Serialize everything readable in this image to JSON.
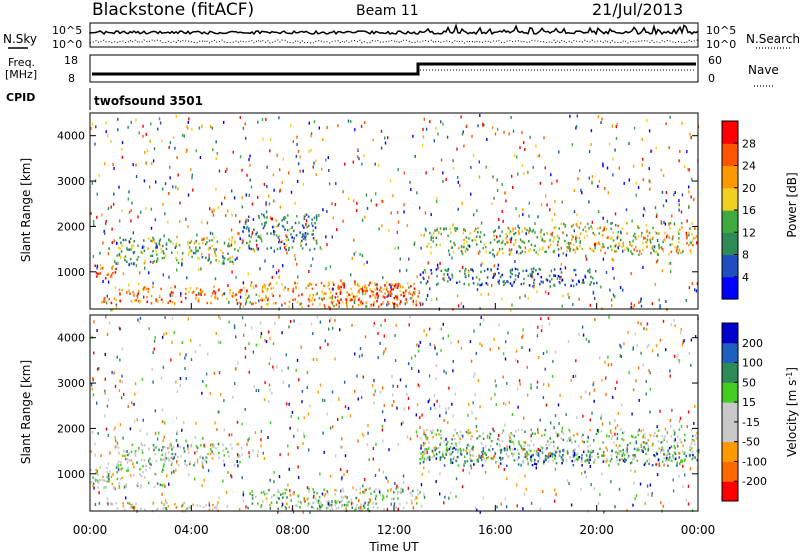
{
  "header": {
    "station": "Blackstone (fitACF)",
    "beam": "Beam 11",
    "date": "21/Jul/2013"
  },
  "noise_panel": {
    "left_label": "N.Sky",
    "right_label": "N.Search",
    "left_ticks": [
      "10^5",
      "10^0"
    ],
    "right_ticks": [
      "10^5",
      "10^0"
    ]
  },
  "freq_panel": {
    "left_label_1": "Freq.",
    "left_label_2": "[MHz]",
    "left_ticks": [
      "18",
      "8"
    ],
    "right_label": "Nave",
    "right_ticks": [
      "60",
      "0"
    ]
  },
  "cpid_panel": {
    "label": "CPID",
    "program": "twofsound 3501"
  },
  "colors": {
    "power": [
      "#0000ff",
      "#1f4fbf",
      "#2e8b57",
      "#3faa3f",
      "#f0d020",
      "#ff9900",
      "#ff5500",
      "#ff0000"
    ],
    "velocity": [
      "#ff0000",
      "#ff6a00",
      "#ff9900",
      "#c8c8c8",
      "#c8c8c8",
      "#44cc22",
      "#2e8b57",
      "#1f5fbf",
      "#0000cc"
    ]
  },
  "chart_data": [
    {
      "type": "heatmap",
      "name": "power",
      "xlabel": "",
      "ylabel": "Slant Range [km]",
      "ylim": [
        180,
        4500
      ],
      "xlim": [
        0,
        24
      ],
      "yticks": [
        "4000",
        "3000",
        "2000",
        "1000"
      ],
      "ytick_values": [
        4000,
        3000,
        2000,
        1000
      ],
      "colorbar": {
        "label": "Power [dB]",
        "ticks": [
          "28",
          "24",
          "20",
          "16",
          "12",
          "8",
          "4"
        ],
        "range": [
          0,
          32
        ]
      },
      "echo_bands": [
        {
          "t0": 0.0,
          "t1": 1.0,
          "r0": 850,
          "r1": 1200,
          "level": 26
        },
        {
          "t0": 0.5,
          "t1": 6.0,
          "r0": 330,
          "r1": 700,
          "level": 24
        },
        {
          "t0": 1.0,
          "t1": 6.0,
          "r0": 1200,
          "r1": 1800,
          "level": 14
        },
        {
          "t0": 6.0,
          "t1": 9.0,
          "r0": 1500,
          "r1": 2300,
          "level": 10
        },
        {
          "t0": 6.0,
          "t1": 13.0,
          "r0": 250,
          "r1": 800,
          "level": 22
        },
        {
          "t0": 9.5,
          "t1": 12.8,
          "r0": 300,
          "r1": 750,
          "level": 28
        },
        {
          "t0": 13.0,
          "t1": 18.0,
          "r0": 1400,
          "r1": 2000,
          "level": 15
        },
        {
          "t0": 13.0,
          "t1": 20.0,
          "r0": 700,
          "r1": 1100,
          "level": 8
        },
        {
          "t0": 18.0,
          "t1": 24.0,
          "r0": 1400,
          "r1": 2100,
          "level": 18
        }
      ]
    },
    {
      "type": "heatmap",
      "name": "velocity",
      "xlabel": "Time UT",
      "ylabel": "Slant Range [km]",
      "ylim": [
        180,
        4500
      ],
      "xlim": [
        0,
        24
      ],
      "xticks": [
        "00:00",
        "04:00",
        "08:00",
        "12:00",
        "16:00",
        "20:00",
        "00:00"
      ],
      "xtick_values": [
        0,
        4,
        8,
        12,
        16,
        20,
        24
      ],
      "yticks": [
        "4000",
        "3000",
        "2000",
        "1000"
      ],
      "ytick_values": [
        4000,
        3000,
        2000,
        1000
      ],
      "colorbar": {
        "label": "Velocity [m s^-1]",
        "ticks": [
          "200",
          "100",
          "50",
          "15",
          "-15",
          "-50",
          "-100",
          "-200"
        ],
        "range": [
          -250,
          250
        ]
      },
      "echo_bands": [
        {
          "t0": 0.0,
          "t1": 3.0,
          "r0": 700,
          "r1": 1200,
          "level": 0
        },
        {
          "t0": 1.0,
          "t1": 6.0,
          "r0": 1200,
          "r1": 1700,
          "level": 10
        },
        {
          "t0": 0.5,
          "t1": 6.0,
          "r0": 200,
          "r1": 400,
          "level": -60
        },
        {
          "t0": 6.0,
          "t1": 13.0,
          "r0": 250,
          "r1": 700,
          "level": 0
        },
        {
          "t0": 8.0,
          "t1": 11.0,
          "r0": 200,
          "r1": 450,
          "level": 40
        },
        {
          "t0": 13.0,
          "t1": 24.0,
          "r0": 1300,
          "r1": 2000,
          "level": 0
        },
        {
          "t0": 13.0,
          "t1": 24.0,
          "r0": 1200,
          "r1": 1600,
          "level": 120
        }
      ]
    }
  ]
}
